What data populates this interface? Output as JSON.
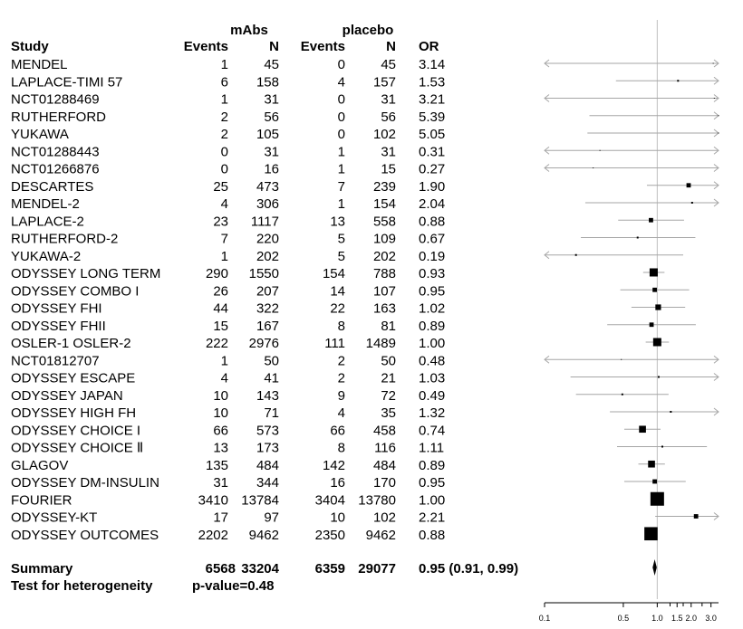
{
  "chart_data": {
    "type": "forest",
    "header": {
      "group1": "mAbs",
      "group2": "placebo",
      "study": "Study",
      "events1": "Events",
      "n1": "N",
      "events2": "Events",
      "n2": "N",
      "or": "OR"
    },
    "rows": [
      {
        "study": "MENDEL",
        "events1": "1",
        "n1": "45",
        "events2": "0",
        "n2": "45",
        "or": "3.14",
        "or_value": 3.14,
        "lower": 0.1,
        "upper": 3.5,
        "weight": 0
      },
      {
        "study": "LAPLACE-TIMI 57",
        "events1": "6",
        "n1": "158",
        "events2": "4",
        "n2": "157",
        "or": "1.53",
        "or_value": 1.53,
        "lower": 0.43,
        "upper": 3.5,
        "weight": 1
      },
      {
        "study": "NCT01288469",
        "events1": "1",
        "n1": "31",
        "events2": "0",
        "n2": "31",
        "or": "3.21",
        "or_value": 3.21,
        "lower": 0.1,
        "upper": 3.5,
        "weight": 0
      },
      {
        "study": "RUTHERFORD",
        "events1": "2",
        "n1": "56",
        "events2": "0",
        "n2": "56",
        "or": "5.39",
        "or_value": 5.39,
        "lower": 0.25,
        "upper": 3.5,
        "weight": 0
      },
      {
        "study": "YUKAWA",
        "events1": "2",
        "n1": "105",
        "events2": "0",
        "n2": "102",
        "or": "5.05",
        "or_value": 5.05,
        "lower": 0.24,
        "upper": 3.5,
        "weight": 0
      },
      {
        "study": "NCT01288443",
        "events1": "0",
        "n1": "31",
        "events2": "1",
        "n2": "31",
        "or": "0.31",
        "or_value": 0.31,
        "lower": 0.1,
        "upper": 3.5,
        "weight": 0
      },
      {
        "study": "NCT01266876",
        "events1": "0",
        "n1": "16",
        "events2": "1",
        "n2": "15",
        "or": "0.27",
        "or_value": 0.27,
        "lower": 0.1,
        "upper": 3.5,
        "weight": 0
      },
      {
        "study": "DESCARTES",
        "events1": "25",
        "n1": "473",
        "events2": "7",
        "n2": "239",
        "or": "1.90",
        "or_value": 1.9,
        "lower": 0.81,
        "upper": 3.5,
        "weight": 2
      },
      {
        "study": "MENDEL-2",
        "events1": "4",
        "n1": "306",
        "events2": "1",
        "n2": "154",
        "or": "2.04",
        "or_value": 2.04,
        "lower": 0.23,
        "upper": 3.5,
        "weight": 1
      },
      {
        "study": "LAPLACE-2",
        "events1": "23",
        "n1": "1117",
        "events2": "13",
        "n2": "558",
        "or": "0.88",
        "or_value": 0.88,
        "lower": 0.45,
        "upper": 1.73,
        "weight": 2
      },
      {
        "study": "RUTHERFORD-2",
        "events1": "7",
        "n1": "220",
        "events2": "5",
        "n2": "109",
        "or": "0.67",
        "or_value": 0.67,
        "lower": 0.21,
        "upper": 2.18,
        "weight": 1
      },
      {
        "study": "YUKAWA-2",
        "events1": "1",
        "n1": "202",
        "events2": "5",
        "n2": "202",
        "or": "0.19",
        "or_value": 0.19,
        "lower": 0.1,
        "upper": 1.7,
        "weight": 1
      },
      {
        "study": "ODYSSEY LONG TERM",
        "events1": "290",
        "n1": "1550",
        "events2": "154",
        "n2": "788",
        "or": "0.93",
        "or_value": 0.93,
        "lower": 0.75,
        "upper": 1.16,
        "weight": 5
      },
      {
        "study": "ODYSSEY COMBO I",
        "events1": "26",
        "n1": "207",
        "events2": "14",
        "n2": "107",
        "or": "0.95",
        "or_value": 0.95,
        "lower": 0.47,
        "upper": 1.92,
        "weight": 2
      },
      {
        "study": "ODYSSEY FHI",
        "events1": "44",
        "n1": "322",
        "events2": "22",
        "n2": "163",
        "or": "1.02",
        "or_value": 1.02,
        "lower": 0.59,
        "upper": 1.77,
        "weight": 3
      },
      {
        "study": "ODYSSEY FHII",
        "events1": "15",
        "n1": "167",
        "events2": "8",
        "n2": "81",
        "or": "0.89",
        "or_value": 0.89,
        "lower": 0.36,
        "upper": 2.2,
        "weight": 2
      },
      {
        "study": "OSLER-1 OSLER-2",
        "events1": "222",
        "n1": "2976",
        "events2": "111",
        "n2": "1489",
        "or": "1.00",
        "or_value": 1.0,
        "lower": 0.79,
        "upper": 1.27,
        "weight": 5
      },
      {
        "study": "NCT01812707",
        "events1": "1",
        "n1": "50",
        "events2": "2",
        "n2": "50",
        "or": "0.48",
        "or_value": 0.48,
        "lower": 0.1,
        "upper": 3.5,
        "weight": 0
      },
      {
        "study": "ODYSSEY ESCAPE",
        "events1": "4",
        "n1": "41",
        "events2": "2",
        "n2": "21",
        "or": "1.03",
        "or_value": 1.03,
        "lower": 0.17,
        "upper": 3.5,
        "weight": 1
      },
      {
        "study": "ODYSSEY JAPAN",
        "events1": "10",
        "n1": "143",
        "events2": "9",
        "n2": "72",
        "or": "0.49",
        "or_value": 0.49,
        "lower": 0.19,
        "upper": 1.26,
        "weight": 1
      },
      {
        "study": "ODYSSEY HIGH FH",
        "events1": "10",
        "n1": "71",
        "events2": "4",
        "n2": "35",
        "or": "1.32",
        "or_value": 1.32,
        "lower": 0.38,
        "upper": 3.5,
        "weight": 1
      },
      {
        "study": "ODYSSEY CHOICE I",
        "events1": "66",
        "n1": "573",
        "events2": "66",
        "n2": "458",
        "or": "0.74",
        "or_value": 0.74,
        "lower": 0.51,
        "upper": 1.07,
        "weight": 4
      },
      {
        "study": "ODYSSEY CHOICE Ⅱ",
        "events1": "13",
        "n1": "173",
        "events2": "8",
        "n2": "116",
        "or": "1.11",
        "or_value": 1.11,
        "lower": 0.44,
        "upper": 2.76,
        "weight": 1
      },
      {
        "study": "GLAGOV",
        "events1": "135",
        "n1": "484",
        "events2": "142",
        "n2": "484",
        "or": "0.89",
        "or_value": 0.89,
        "lower": 0.68,
        "upper": 1.17,
        "weight": 4
      },
      {
        "study": "ODYSSEY DM-INSULIN",
        "events1": "31",
        "n1": "344",
        "events2": "16",
        "n2": "170",
        "or": "0.95",
        "or_value": 0.95,
        "lower": 0.51,
        "upper": 1.79,
        "weight": 2
      },
      {
        "study": "FOURIER",
        "events1": "3410",
        "n1": "13784",
        "events2": "3404",
        "n2": "13780",
        "or": "1.00",
        "or_value": 1.0,
        "lower": 0.95,
        "upper": 1.06,
        "weight": 10
      },
      {
        "study": "ODYSSEY-KT",
        "events1": "17",
        "n1": "97",
        "events2": "10",
        "n2": "102",
        "or": "2.21",
        "or_value": 2.21,
        "lower": 0.96,
        "upper": 3.5,
        "weight": 2
      },
      {
        "study": "ODYSSEY OUTCOMES",
        "events1": "2202",
        "n1": "9462",
        "events2": "2350",
        "n2": "9462",
        "or": "0.88",
        "or_value": 0.88,
        "lower": 0.83,
        "upper": 0.94,
        "weight": 9
      }
    ],
    "summary": {
      "label": "Summary",
      "events1": "6568",
      "n1": "33204",
      "events2": "6359",
      "n2": "29077",
      "or": "0.95 (0.91, 0.99)",
      "or_value": 0.95,
      "lower": 0.91,
      "upper": 0.99
    },
    "heterogeneity": {
      "label": "Test for heterogeneity",
      "value": "p-value=0.48"
    },
    "x_axis": {
      "scale": "log",
      "range": [
        0.1,
        3.5
      ],
      "reference": 1.0,
      "ticks": [
        {
          "value": 0.1,
          "label": "0.1"
        },
        {
          "value": 0.5,
          "label": "0.5"
        },
        {
          "value": 1.0,
          "label": "1.0"
        },
        {
          "value": 1.5,
          "label": "1.5"
        },
        {
          "value": 2.0,
          "label": "2.0"
        },
        {
          "value": 3.0,
          "label": "3.0"
        }
      ],
      "minor_ticks": [
        1.3,
        1.7,
        2.5
      ]
    },
    "colors": {
      "line": "#a6a6a6",
      "box": "#000000",
      "reference": "#bfbfbf"
    }
  }
}
